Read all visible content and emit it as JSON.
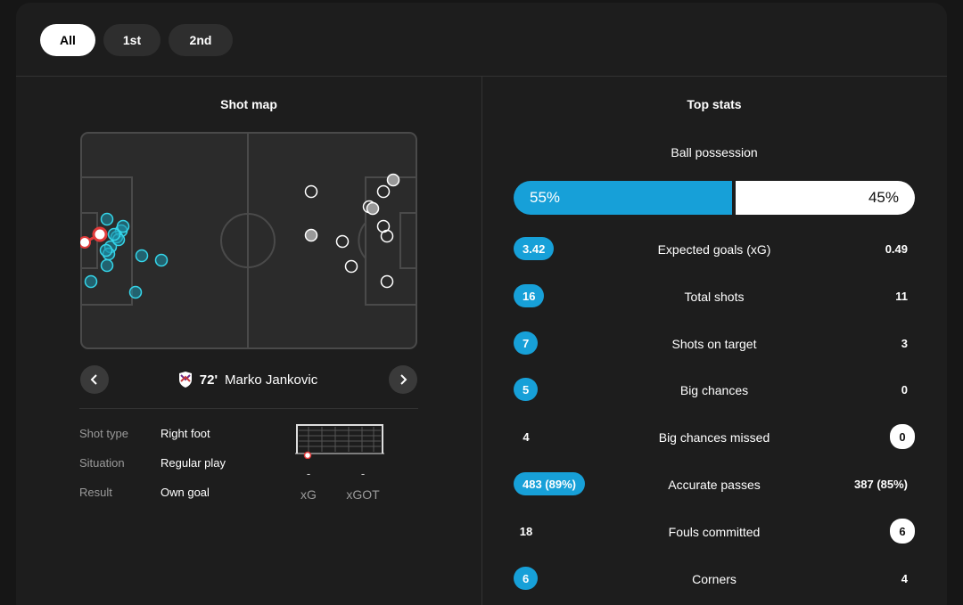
{
  "filters": [
    {
      "label": "All",
      "active": true
    },
    {
      "label": "1st",
      "active": false
    },
    {
      "label": "2nd",
      "active": false
    }
  ],
  "shot_map": {
    "title": "Shot map",
    "home_color": "#17a0d8",
    "home_fill": "#1b8fa8",
    "highlight_color": "#e03a3a",
    "player": {
      "minute": "72'",
      "name": "Marko Jankovic"
    },
    "details": [
      {
        "label": "Shot type",
        "value": "Right foot"
      },
      {
        "label": "Situation",
        "value": "Regular play"
      },
      {
        "label": "Result",
        "value": "Own goal"
      }
    ],
    "xg": {
      "value": "-",
      "label": "xG"
    },
    "xgot": {
      "value": "-",
      "label": "xGOT"
    }
  },
  "top_stats": {
    "title": "Top stats",
    "possession": {
      "label": "Ball possession",
      "home": "55%",
      "away": "45%",
      "home_share": 0.55
    },
    "rows": [
      {
        "label": "Expected goals (xG)",
        "home": "3.42",
        "away": "0.49",
        "highlight": "home"
      },
      {
        "label": "Total shots",
        "home": "16",
        "away": "11",
        "highlight": "home"
      },
      {
        "label": "Shots on target",
        "home": "7",
        "away": "3",
        "highlight": "home"
      },
      {
        "label": "Big chances",
        "home": "5",
        "away": "0",
        "highlight": "home"
      },
      {
        "label": "Big chances missed",
        "home": "4",
        "away": "0",
        "highlight": "away"
      },
      {
        "label": "Accurate passes",
        "home": "483 (89%)",
        "away": "387 (85%)",
        "highlight": "home"
      },
      {
        "label": "Fouls committed",
        "home": "18",
        "away": "6",
        "highlight": "away"
      },
      {
        "label": "Corners",
        "home": "6",
        "away": "4",
        "highlight": "home"
      }
    ]
  },
  "colors": {
    "home": "#17a0d8",
    "away": "#ffffff",
    "background": "#1d1d1d"
  }
}
